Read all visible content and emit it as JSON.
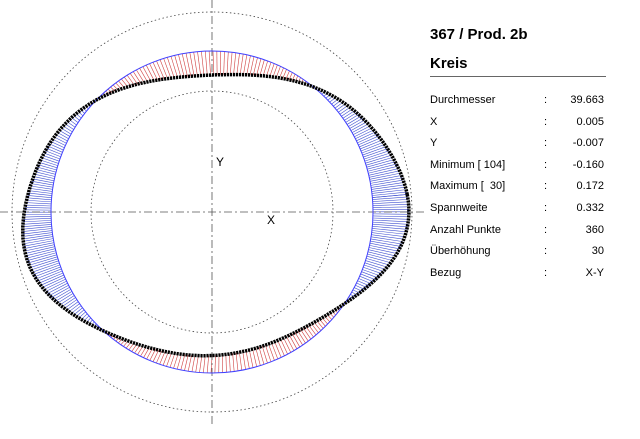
{
  "header": {
    "title": "367 / Prod. 2b",
    "subtitle": "Kreis"
  },
  "plot": {
    "x_label": "X",
    "y_label": "Y"
  },
  "table": {
    "rows": [
      [
        "Durchmesser",
        ":",
        "39.663"
      ],
      [
        "X",
        ":",
        "0.005"
      ],
      [
        "Y",
        ":",
        "-0.007"
      ],
      [
        "Minimum [ 104]",
        ":",
        "-0.160"
      ],
      [
        "Maximum [  30]",
        ":",
        "0.172"
      ],
      [
        "Spannweite",
        ":",
        "0.332"
      ],
      [
        "Anzahl Punkte",
        ":",
        "360"
      ],
      [
        "Überhöhung",
        ":",
        "30"
      ],
      [
        "Bezug",
        ":",
        "X-Y"
      ]
    ]
  }
}
